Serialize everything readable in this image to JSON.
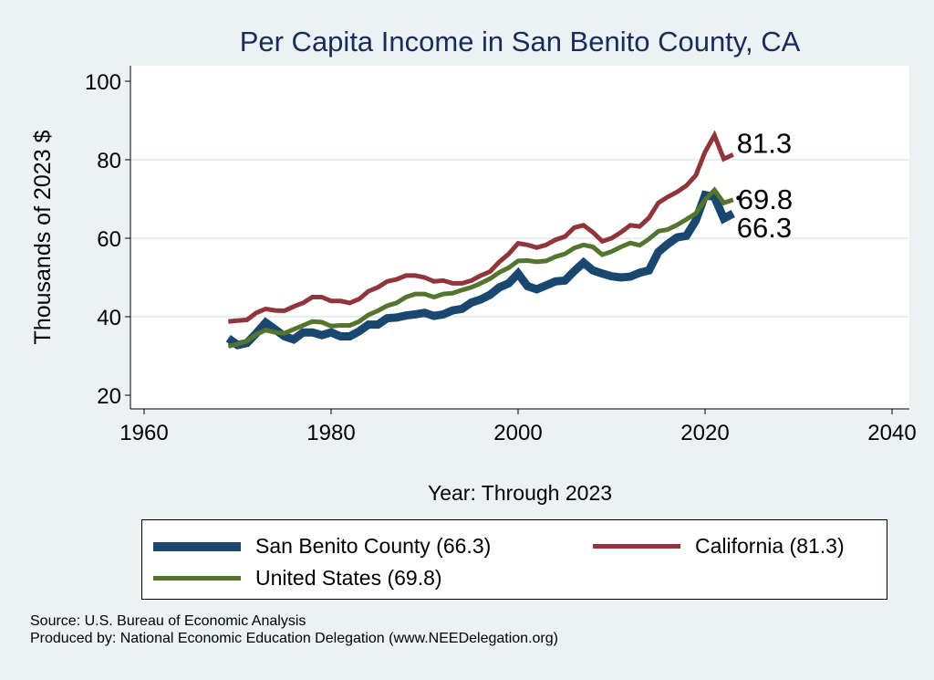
{
  "chart_data": {
    "type": "line",
    "title": "Per Capita Income in San Benito County, CA",
    "xlabel": "Year: Through 2023",
    "ylabel": "Thousands of 2023 $",
    "xlim": [
      1960,
      2040
    ],
    "ylim": [
      20,
      100
    ],
    "xticks": [
      1960,
      1980,
      2000,
      2020,
      2040
    ],
    "yticks": [
      20,
      40,
      60,
      80,
      100
    ],
    "grid": true,
    "legend_position": "bottom",
    "x": [
      1969,
      1970,
      1971,
      1972,
      1973,
      1974,
      1975,
      1976,
      1977,
      1978,
      1979,
      1980,
      1981,
      1982,
      1983,
      1984,
      1985,
      1986,
      1987,
      1988,
      1989,
      1990,
      1991,
      1992,
      1993,
      1994,
      1995,
      1996,
      1997,
      1998,
      1999,
      2000,
      2001,
      2002,
      2003,
      2004,
      2005,
      2006,
      2007,
      2008,
      2009,
      2010,
      2011,
      2012,
      2013,
      2014,
      2015,
      2016,
      2017,
      2018,
      2019,
      2020,
      2021,
      2022,
      2023
    ],
    "series": [
      {
        "name": "San Benito County (66.3)",
        "color": "#1a476f",
        "end_label": "66.3",
        "values": [
          34.5,
          32.8,
          33.3,
          35.8,
          38.5,
          36.8,
          35,
          34.2,
          36,
          36,
          35.3,
          36,
          35,
          35,
          36.3,
          38,
          38,
          39.6,
          39.8,
          40.3,
          40.6,
          41,
          40.2,
          40.6,
          41.6,
          42,
          43.6,
          44.4,
          45.6,
          47.5,
          48.5,
          51,
          47.8,
          47,
          48,
          49,
          49.2,
          51.6,
          53.8,
          51.8,
          51,
          50.3,
          50,
          50.2,
          51.2,
          51.8,
          56.5,
          58.5,
          60.2,
          60.6,
          64.5,
          71,
          70.5,
          65,
          66.3
        ]
      },
      {
        "name": "California (81.3)",
        "color": "#90353b",
        "end_label": "81.3",
        "values": [
          38.8,
          39,
          39.2,
          41,
          42,
          41.6,
          41.5,
          42.6,
          43.5,
          45,
          45,
          44,
          44,
          43.5,
          44.5,
          46.5,
          47.5,
          49,
          49.5,
          50.5,
          50.5,
          50,
          49,
          49.2,
          48.5,
          48.5,
          49.2,
          50.5,
          51.5,
          54,
          56,
          58.7,
          58.3,
          57.6,
          58.3,
          59.6,
          60.4,
          62.7,
          63.3,
          61.5,
          59.2,
          60,
          61.5,
          63.3,
          63,
          65.2,
          69,
          70.5,
          71.8,
          73.4,
          76,
          82,
          86.2,
          80.2,
          81.3
        ]
      },
      {
        "name": "United States (69.8)",
        "color": "#55752f",
        "end_label": "69.8",
        "values": [
          32.5,
          33,
          33.8,
          35.5,
          36.6,
          36,
          35.8,
          36.8,
          37.8,
          38.8,
          38.6,
          37.6,
          37.8,
          37.8,
          38.8,
          40.5,
          41.5,
          42.8,
          43.5,
          45,
          45.8,
          45.8,
          45,
          45.8,
          46,
          46.8,
          47.5,
          48.5,
          49.7,
          51.3,
          52.5,
          54.2,
          54.3,
          54,
          54.2,
          55.3,
          56,
          57.5,
          58.3,
          57.8,
          55.8,
          56.6,
          57.8,
          58.8,
          58.2,
          59.8,
          61.8,
          62.2,
          63.4,
          64.8,
          66.3,
          69.8,
          72.3,
          69,
          69.8
        ]
      }
    ]
  },
  "notes": {
    "source": "Source: U.S. Bureau of Economic Analysis",
    "produced_by": "Produced by: National Economic Education Delegation (www.NEEDelegation.org)"
  }
}
